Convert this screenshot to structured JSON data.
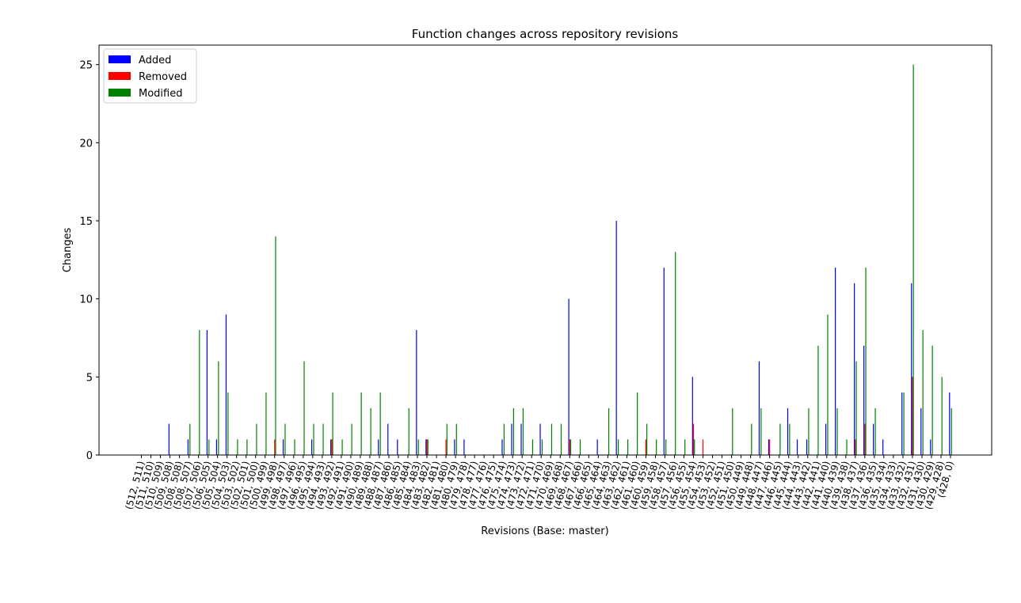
{
  "chart_data": {
    "type": "bar",
    "title": "Function changes across repository revisions",
    "xlabel": "Revisions (Base: master)",
    "ylabel": "Changes",
    "ylim": [
      0,
      26.25
    ],
    "yticks": [
      0,
      5,
      10,
      15,
      20,
      25
    ],
    "legend_position": "top-left",
    "grid": false,
    "categories": [
      "(512, 511)",
      "(511, 510)",
      "(510, 509)",
      "(509, 508)",
      "(508, 508)",
      "(508, 507)",
      "(507, 506)",
      "(506, 505)",
      "(505, 504)",
      "(504, 503)",
      "(503, 502)",
      "(502, 501)",
      "(501, 500)",
      "(500, 499)",
      "(499, 498)",
      "(498, 497)",
      "(497, 496)",
      "(496, 495)",
      "(495, 494)",
      "(494, 493)",
      "(493, 492)",
      "(492, 491)",
      "(491, 490)",
      "(490, 489)",
      "(489, 488)",
      "(488, 487)",
      "(487, 486)",
      "(486, 485)",
      "(485, 484)",
      "(484, 483)",
      "(483, 482)",
      "(482, 481)",
      "(481, 480)",
      "(480, 479)",
      "(479, 478)",
      "(478, 477)",
      "(477, 476)",
      "(476, 475)",
      "(475, 474)",
      "(474, 473)",
      "(473, 472)",
      "(472, 471)",
      "(471, 470)",
      "(470, 469)",
      "(469, 468)",
      "(468, 467)",
      "(467, 466)",
      "(466, 465)",
      "(465, 464)",
      "(464, 463)",
      "(463, 462)",
      "(462, 461)",
      "(461, 460)",
      "(460, 459)",
      "(459, 458)",
      "(458, 457)",
      "(457, 456)",
      "(456, 455)",
      "(455, 454)",
      "(454, 453)",
      "(453, 452)",
      "(452, 451)",
      "(451, 450)",
      "(450, 449)",
      "(449, 448)",
      "(448, 447)",
      "(447, 446)",
      "(446, 445)",
      "(445, 444)",
      "(444, 443)",
      "(443, 442)",
      "(442, 441)",
      "(441, 440)",
      "(440, 439)",
      "(439, 438)",
      "(438, 437)",
      "(437, 436)",
      "(436, 435)",
      "(435, 434)",
      "(434, 433)",
      "(433, 432)",
      "(432, 431)",
      "(431, 430)",
      "(430, 429)",
      "(429, 428)",
      "(428, 0)"
    ],
    "series": [
      {
        "name": "Added",
        "color": "#0000ff",
        "values": [
          0,
          0,
          0,
          2,
          0,
          1,
          0,
          8,
          1,
          9,
          0,
          0,
          0,
          0,
          0,
          1,
          0,
          0,
          1,
          0,
          1,
          0,
          0,
          0,
          0,
          1,
          2,
          1,
          0,
          8,
          1,
          0,
          0,
          1,
          1,
          0,
          0,
          0,
          1,
          2,
          2,
          0,
          2,
          0,
          0,
          10,
          0,
          0,
          1,
          0,
          15,
          0,
          0,
          0,
          0,
          12,
          0,
          0,
          5,
          0,
          0,
          0,
          0,
          0,
          0,
          6,
          1,
          0,
          3,
          1,
          1,
          0,
          2,
          12,
          0,
          11,
          7,
          2,
          1,
          0,
          4,
          11,
          3,
          1,
          0,
          4
        ]
      },
      {
        "name": "Removed",
        "color": "#ff0000",
        "values": [
          0,
          0,
          0,
          0,
          0,
          0,
          0,
          0,
          0,
          0,
          0,
          0,
          0,
          0,
          1,
          0,
          0,
          0,
          0,
          0,
          1,
          0,
          0,
          0,
          0,
          0,
          0,
          0,
          0,
          0,
          1,
          0,
          1,
          0,
          0,
          0,
          0,
          0,
          0,
          0,
          0,
          0,
          0,
          0,
          0,
          1,
          0,
          0,
          0,
          0,
          0,
          0,
          0,
          1,
          0,
          0,
          0,
          0,
          2,
          1,
          0,
          0,
          0,
          0,
          0,
          0,
          1,
          0,
          0,
          0,
          0,
          0,
          0,
          0,
          0,
          1,
          2,
          0,
          0,
          0,
          0,
          5,
          0,
          0,
          0,
          0
        ]
      },
      {
        "name": "Modified",
        "color": "#008000",
        "values": [
          0,
          0,
          0,
          0,
          0,
          2,
          8,
          1,
          6,
          4,
          1,
          1,
          2,
          4,
          14,
          2,
          1,
          6,
          2,
          2,
          4,
          1,
          2,
          4,
          3,
          4,
          0,
          0,
          3,
          1,
          1,
          0,
          2,
          2,
          0,
          0,
          0,
          0,
          2,
          3,
          3,
          1,
          1,
          2,
          2,
          1,
          1,
          0,
          0,
          3,
          1,
          1,
          4,
          2,
          1,
          1,
          13,
          1,
          1,
          0,
          0,
          0,
          3,
          0,
          2,
          3,
          0,
          2,
          2,
          0,
          3,
          7,
          9,
          3,
          1,
          6,
          12,
          3,
          0,
          0,
          4,
          25,
          8,
          7,
          5,
          3
        ]
      }
    ]
  }
}
